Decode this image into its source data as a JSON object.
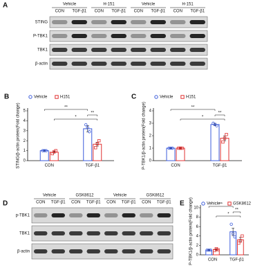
{
  "blots": [
    {
      "panel": "A",
      "groups": [
        "Vehicle",
        "H-151",
        "Vehicle",
        "H-151"
      ],
      "lanes": [
        "CON",
        "TGF-β1",
        "CON",
        "TGF-β1",
        "CON",
        "TGF-β1",
        "CON",
        "TGF-β1"
      ],
      "rows": [
        "STING",
        "P-TBK1",
        "TBK1",
        "β-actin"
      ]
    },
    {
      "panel": "D",
      "groups": [
        "Vehicle",
        "GSK8612",
        "Vehicle",
        "GSK8612"
      ],
      "lanes": [
        "CON",
        "TGF-β1",
        "CON",
        "TGF-β1",
        "CON",
        "TGF-β1",
        "CON",
        "TGF-β1"
      ],
      "rows": [
        "p-TBK1",
        "TBK1",
        "β-actin"
      ]
    }
  ],
  "chart_data": [
    {
      "type": "bar",
      "panel": "B",
      "y_label": "STING/β-actin protein(Fold change)",
      "categories": [
        "CON",
        "TGF-β1"
      ],
      "series": [
        {
          "name": "Vehicle",
          "color": "#3b5bdb",
          "marker": "circle",
          "values": [
            1,
            3.2
          ],
          "errors": [
            0.05,
            0.3
          ],
          "points": [
            [
              1,
              1,
              1
            ],
            [
              3.6,
              3.3,
              2.9
            ]
          ]
        },
        {
          "name": "H151",
          "color": "#e03131",
          "marker": "square",
          "values": [
            0.85,
            1.65
          ],
          "errors": [
            0.1,
            0.2
          ],
          "points": [
            [
              0.7,
              0.9,
              1
            ],
            [
              1.3,
              1.7,
              2
            ]
          ]
        }
      ],
      "ylim": [
        0,
        5
      ],
      "yticks": [
        0,
        1,
        2,
        3,
        4,
        5
      ],
      "annotations": [
        "**",
        "**",
        "*"
      ]
    },
    {
      "type": "bar",
      "panel": "C",
      "y_label": "P-TBK1/β-actin protein(Fold change)",
      "categories": [
        "CON",
        "TGF-β1"
      ],
      "series": [
        {
          "name": "Vehicle",
          "color": "#3b5bdb",
          "marker": "circle",
          "values": [
            1,
            2.9
          ],
          "errors": [
            0.03,
            0.1
          ],
          "points": [
            [
              1,
              1,
              1
            ],
            [
              3,
              2.9,
              2.8
            ]
          ]
        },
        {
          "name": "H151",
          "color": "#e03131",
          "marker": "square",
          "values": [
            1,
            1.8
          ],
          "errors": [
            0.05,
            0.2
          ],
          "points": [
            [
              1,
              1,
              1
            ],
            [
              1.5,
              1.8,
              2.1
            ]
          ]
        }
      ],
      "ylim": [
        0,
        4
      ],
      "yticks": [
        0,
        1,
        2,
        3,
        4
      ],
      "annotations": [
        "**",
        "**",
        "*"
      ]
    },
    {
      "type": "bar",
      "panel": "E",
      "y_label": "P-TBK1/β-actin protein(Fold change)",
      "categories": [
        "CON",
        "TGF-β1"
      ],
      "series": [
        {
          "name": "Vehicle",
          "color": "#3b5bdb",
          "marker": "circle",
          "values": [
            1,
            4.9
          ],
          "errors": [
            0.1,
            0.8
          ],
          "points": [
            [
              1,
              1,
              1
            ],
            [
              6.5,
              4.5,
              3.8
            ]
          ]
        },
        {
          "name": "GSK8612",
          "color": "#e03131",
          "marker": "square",
          "values": [
            1.1,
            3.2
          ],
          "errors": [
            0.2,
            0.5
          ],
          "points": [
            [
              0.9,
              1.3,
              1.1
            ],
            [
              2.5,
              3,
              4
            ]
          ]
        }
      ],
      "ylim": [
        0,
        10
      ],
      "yticks": [
        0,
        2,
        4,
        6,
        8,
        10
      ],
      "annotations": [
        "**",
        "**",
        "*"
      ]
    }
  ]
}
